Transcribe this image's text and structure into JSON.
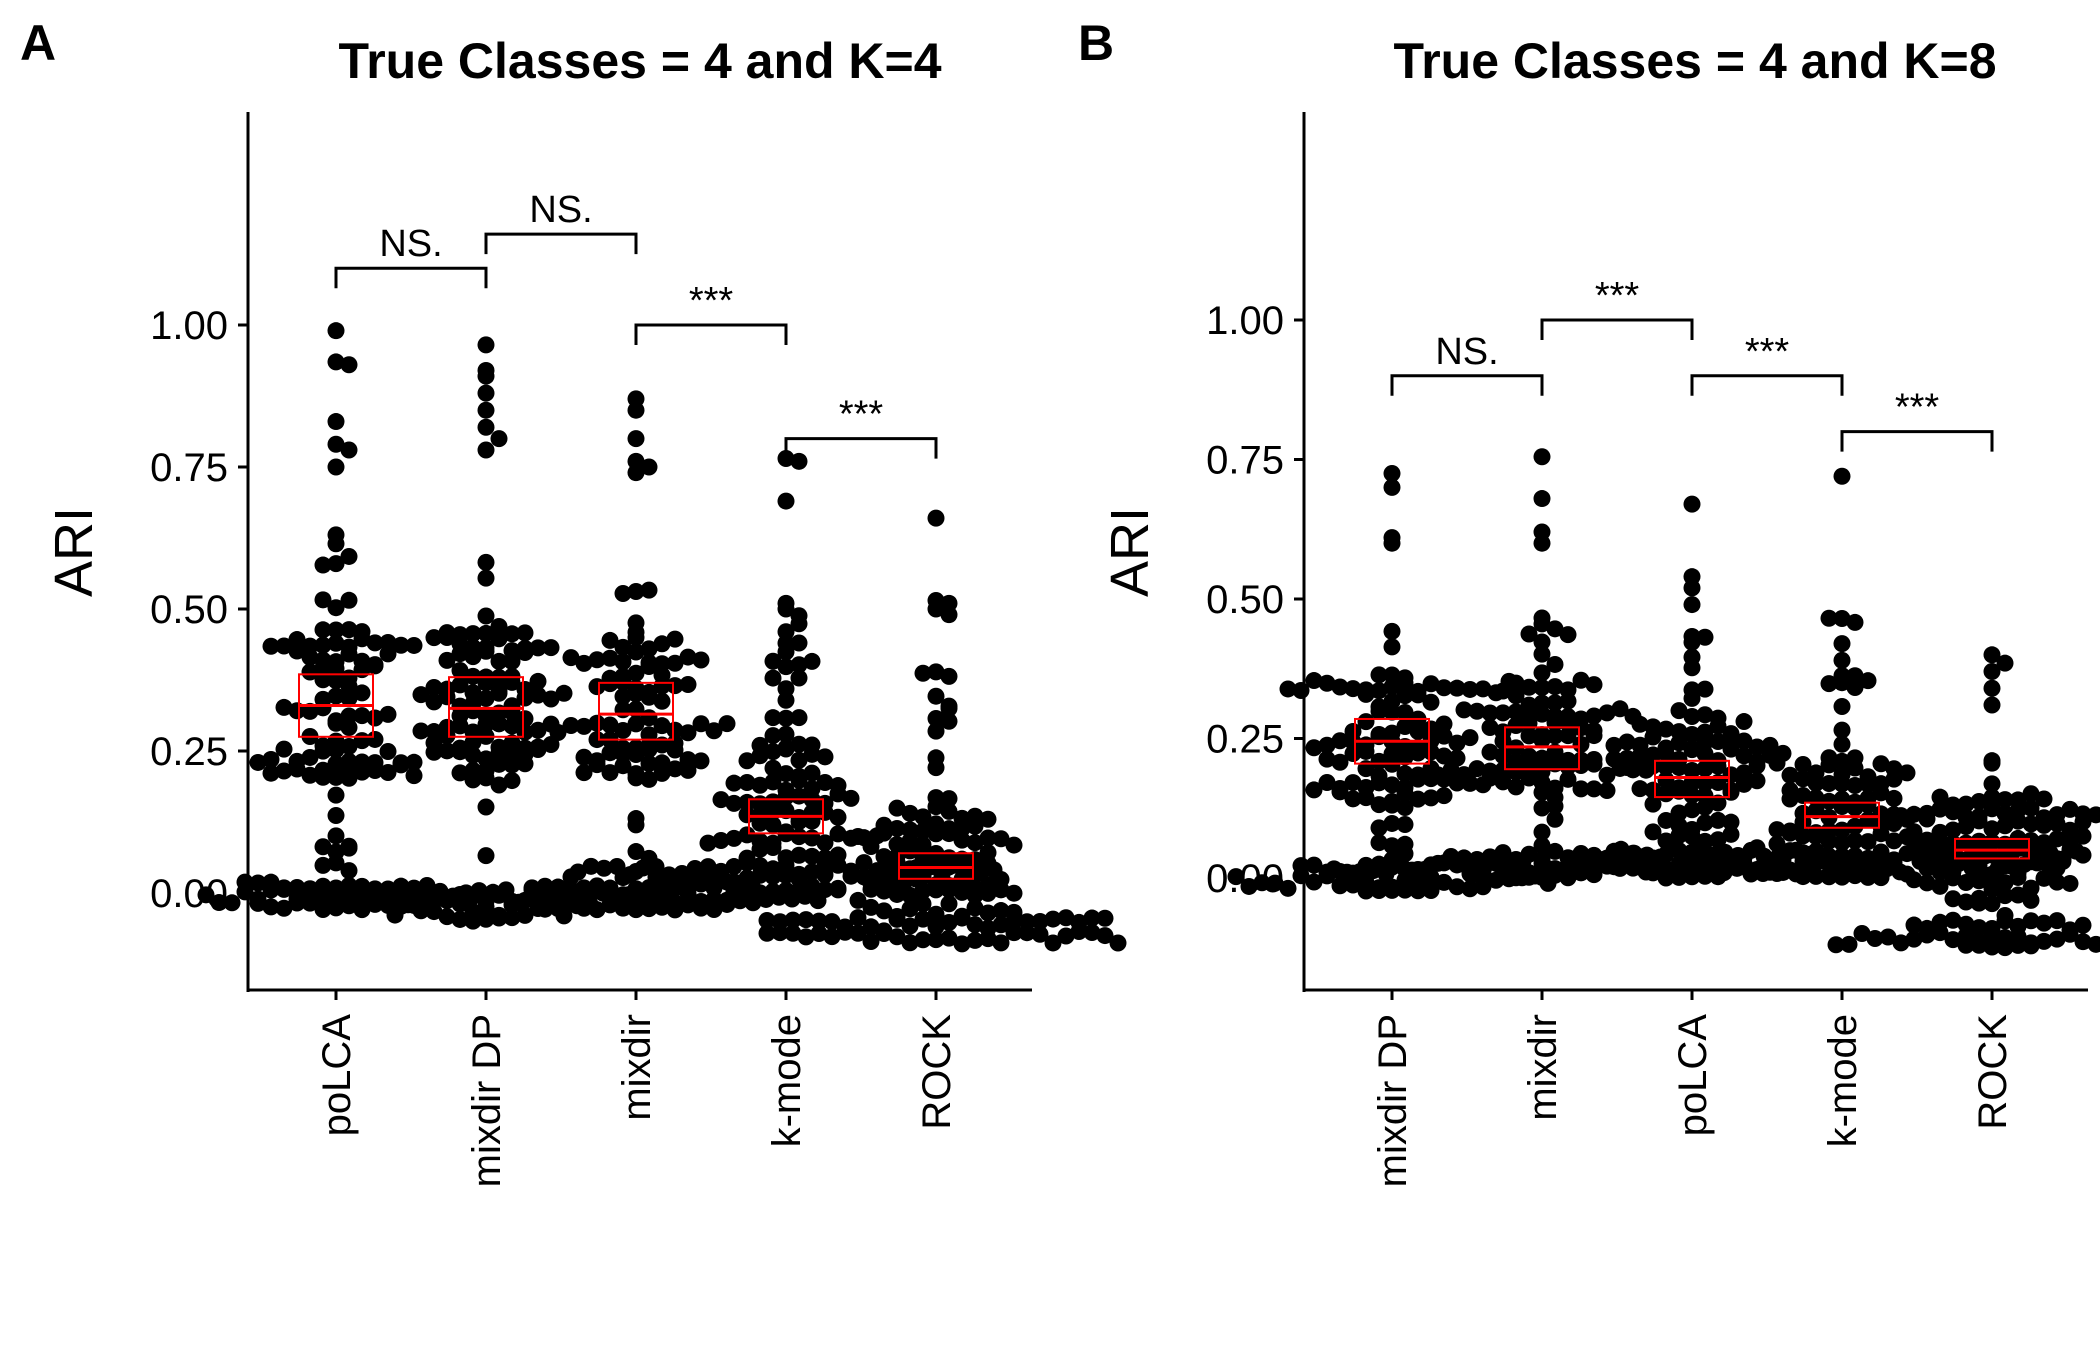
{
  "chart_data": [
    {
      "panel": "A",
      "type": "scatter",
      "title": "True Classes = 4 and K=4",
      "ylabel": "ARI",
      "xlabel": "",
      "ylim": [
        -0.16,
        1.33
      ],
      "yticks": [
        "0.00",
        "0.25",
        "0.50",
        "0.75",
        "1.00"
      ],
      "categories": [
        "poLCA",
        "mixdir DP",
        "mixdir",
        "k-mode",
        "ROCK"
      ],
      "summary": [
        {
          "category": "poLCA",
          "lower": 0.275,
          "median": 0.33,
          "upper": 0.385
        },
        {
          "category": "mixdir DP",
          "lower": 0.275,
          "median": 0.325,
          "upper": 0.38
        },
        {
          "category": "mixdir",
          "lower": 0.27,
          "median": 0.315,
          "upper": 0.37
        },
        {
          "category": "k-mode",
          "lower": 0.105,
          "median": 0.135,
          "upper": 0.165
        },
        {
          "category": "ROCK",
          "lower": 0.025,
          "median": 0.045,
          "upper": 0.07
        }
      ],
      "distributions": [
        {
          "category": "poLCA",
          "min": -0.03,
          "max": 0.99,
          "outliers": [
            0.99,
            0.935,
            0.93,
            0.83,
            0.79,
            0.78,
            0.75
          ]
        },
        {
          "category": "mixdir DP",
          "min": -0.05,
          "max": 0.965,
          "outliers": [
            0.965,
            0.92,
            0.91,
            0.88,
            0.85,
            0.82,
            0.8,
            0.78
          ]
        },
        {
          "category": "mixdir",
          "min": -0.03,
          "max": 0.87,
          "outliers": [
            0.87,
            0.85,
            0.8,
            0.76,
            0.75,
            0.74
          ]
        },
        {
          "category": "k-mode",
          "min": 0.0,
          "max": 0.765,
          "outliers": [
            0.765,
            0.76,
            0.69,
            0.51,
            0.5,
            0.46,
            0.44
          ]
        },
        {
          "category": "ROCK",
          "min": -0.09,
          "max": 0.66,
          "outliers": [
            0.66,
            0.515,
            0.51,
            0.5,
            0.49,
            0.285
          ]
        }
      ],
      "comparisons": [
        {
          "from": "poLCA",
          "to": "mixdir DP",
          "label": "NS.",
          "y": 1.1
        },
        {
          "from": "mixdir DP",
          "to": "mixdir",
          "label": "NS.",
          "y": 1.16
        },
        {
          "from": "mixdir",
          "to": "k-mode",
          "label": "***",
          "y": 1.0
        },
        {
          "from": "k-mode",
          "to": "ROCK",
          "label": "***",
          "y": 0.8
        }
      ]
    },
    {
      "panel": "B",
      "type": "scatter",
      "title": "True Classes = 4 and K=8",
      "ylabel": "ARI",
      "xlabel": "",
      "ylim": [
        -0.19,
        1.37
      ],
      "yticks": [
        "0.00",
        "0.25",
        "0.50",
        "0.75",
        "1.00"
      ],
      "categories": [
        "mixdir DP",
        "mixdir",
        "poLCA",
        "k-mode",
        "ROCK"
      ],
      "summary": [
        {
          "category": "mixdir DP",
          "lower": 0.205,
          "median": 0.245,
          "upper": 0.285
        },
        {
          "category": "mixdir",
          "lower": 0.195,
          "median": 0.235,
          "upper": 0.27
        },
        {
          "category": "poLCA",
          "lower": 0.145,
          "median": 0.18,
          "upper": 0.21
        },
        {
          "category": "k-mode",
          "lower": 0.09,
          "median": 0.11,
          "upper": 0.135
        },
        {
          "category": "ROCK",
          "lower": 0.035,
          "median": 0.05,
          "upper": 0.07
        }
      ],
      "distributions": [
        {
          "category": "mixdir DP",
          "min": -0.025,
          "max": 0.725,
          "outliers": [
            0.725,
            0.7,
            0.61,
            0.6
          ]
        },
        {
          "category": "mixdir",
          "min": 0.0,
          "max": 0.755,
          "outliers": [
            0.755,
            0.68,
            0.62,
            0.6
          ]
        },
        {
          "category": "poLCA",
          "min": 0.0,
          "max": 0.67,
          "outliers": [
            0.67,
            0.54,
            0.52,
            0.49
          ]
        },
        {
          "category": "k-mode",
          "min": 0.0,
          "max": 0.72,
          "outliers": [
            0.72,
            0.465,
            0.42,
            0.39,
            0.35
          ]
        },
        {
          "category": "ROCK",
          "min": -0.125,
          "max": 0.4,
          "outliers": [
            0.4,
            0.385,
            0.37,
            0.34,
            0.31
          ]
        }
      ],
      "comparisons": [
        {
          "from": "mixdir DP",
          "to": "mixdir",
          "label": "NS.",
          "y": 0.9
        },
        {
          "from": "mixdir",
          "to": "poLCA",
          "label": "***",
          "y": 1.0
        },
        {
          "from": "poLCA",
          "to": "k-mode",
          "label": "***",
          "y": 0.9
        },
        {
          "from": "k-mode",
          "to": "ROCK",
          "label": "***",
          "y": 0.8
        }
      ]
    }
  ],
  "colors": {
    "points": "#000000",
    "summary_box": "#ff0000",
    "axis": "#000000"
  }
}
